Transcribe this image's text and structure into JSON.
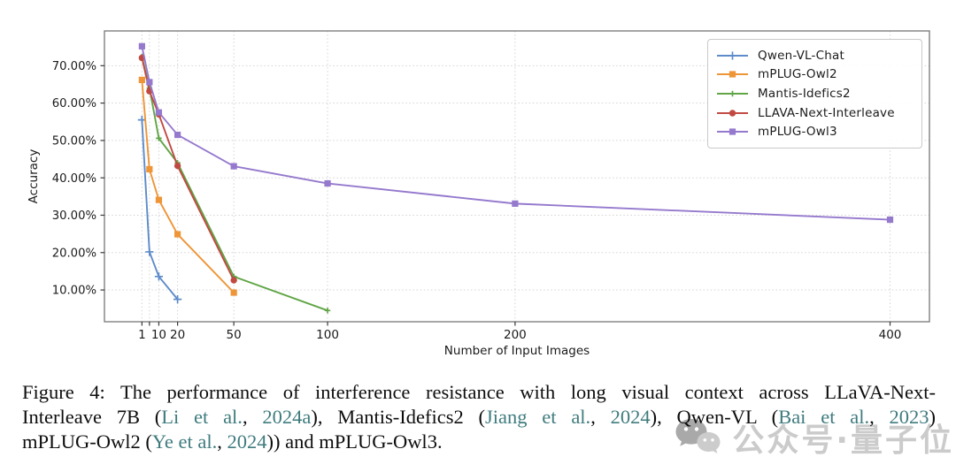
{
  "chart_data": {
    "type": "line",
    "title": "",
    "xlabel": "Number of Input Images",
    "ylabel": "Accuracy",
    "x_scale": "linear",
    "xlim": [
      -19,
      421
    ],
    "ylim_percent": [
      1.5,
      79.3
    ],
    "grid": true,
    "legend_position": "upper right",
    "y_ticks": [
      {
        "v": 10,
        "label": "10.00%"
      },
      {
        "v": 20,
        "label": "20.00%"
      },
      {
        "v": 30,
        "label": "30.00%"
      },
      {
        "v": 40,
        "label": "40.00%"
      },
      {
        "v": 50,
        "label": "50.00%"
      },
      {
        "v": 60,
        "label": "60.00%"
      },
      {
        "v": 70,
        "label": "70.00%"
      }
    ],
    "x_ticks": [
      {
        "v": 1,
        "label": "1"
      },
      {
        "v": 5,
        "label": ""
      },
      {
        "v": 10,
        "label": "10"
      },
      {
        "v": 20,
        "label": "20"
      },
      {
        "v": 50,
        "label": "50"
      },
      {
        "v": 100,
        "label": "100"
      },
      {
        "v": 200,
        "label": "200"
      },
      {
        "v": 400,
        "label": "400"
      }
    ],
    "series": [
      {
        "name": "Qwen-VL-Chat",
        "color": "#5e8bc9",
        "marker": "plus",
        "points": [
          [
            1,
            55.5
          ],
          [
            5,
            20.2
          ],
          [
            10,
            13.6
          ],
          [
            20,
            7.5
          ]
        ]
      },
      {
        "name": "mPLUG-Owl2",
        "color": "#ee9537",
        "marker": "square",
        "points": [
          [
            1,
            66.2
          ],
          [
            5,
            42.3
          ],
          [
            10,
            34.1
          ],
          [
            20,
            24.9
          ],
          [
            50,
            9.3
          ]
        ]
      },
      {
        "name": "Mantis-Idefics2",
        "color": "#60a546",
        "marker": "plus-small",
        "points": [
          [
            1,
            72.4
          ],
          [
            5,
            64.0
          ],
          [
            10,
            50.6
          ],
          [
            20,
            44.0
          ],
          [
            50,
            13.6
          ],
          [
            100,
            4.5
          ]
        ]
      },
      {
        "name": "LLAVA-Next-Interleave",
        "color": "#c04a42",
        "marker": "circle",
        "points": [
          [
            1,
            72.1
          ],
          [
            5,
            63.2
          ],
          [
            10,
            57.0
          ],
          [
            20,
            43.2
          ],
          [
            50,
            12.6
          ]
        ]
      },
      {
        "name": "mPLUG-Owl3",
        "color": "#9579cd",
        "marker": "square",
        "points": [
          [
            1,
            75.2
          ],
          [
            5,
            65.6
          ],
          [
            10,
            57.5
          ],
          [
            20,
            51.5
          ],
          [
            50,
            43.1
          ],
          [
            100,
            38.5
          ],
          [
            200,
            33.1
          ],
          [
            400,
            28.8
          ]
        ]
      }
    ],
    "style": {
      "grid_color": "#d3d3d3",
      "spine_color": "#7f7f7f",
      "tick_color": "#3a3a3a",
      "tick_label_color": "#1a1a1a"
    }
  },
  "caption": {
    "citation_color": "#3f7b7e",
    "line1": "Figure 4:  The performance of interference resistance with long visual context across LLaVA-Next-",
    "line2_segments": [
      {
        "text": "Interleave 7B (",
        "link": false
      },
      {
        "text": "Li et al.",
        "link": true
      },
      {
        "text": ", ",
        "link": false
      },
      {
        "text": "2024a",
        "link": true
      },
      {
        "text": "), Mantis-Idefics2 (",
        "link": false
      },
      {
        "text": "Jiang et al.",
        "link": true
      },
      {
        "text": ", ",
        "link": false
      },
      {
        "text": "2024",
        "link": true
      },
      {
        "text": "), Qwen-VL (",
        "link": false
      },
      {
        "text": "Bai et al.",
        "link": true
      },
      {
        "text": ", ",
        "link": false
      },
      {
        "text": "2023",
        "link": true
      },
      {
        "text": ")",
        "link": false
      }
    ],
    "line3_segments": [
      {
        "text": "mPLUG-Owl2 (",
        "link": false
      },
      {
        "text": "Ye et al.",
        "link": true
      },
      {
        "text": ", ",
        "link": false
      },
      {
        "text": "2024",
        "link": true
      },
      {
        "text": ")) and mPLUG-Owl3.",
        "link": false
      }
    ]
  },
  "watermark": {
    "text": "公众号·量子位",
    "icon": "wechat-icon",
    "text_color": "#c2c2c2",
    "icon_color": "#a9a9a9",
    "icon_color_light": "#cccccc"
  }
}
